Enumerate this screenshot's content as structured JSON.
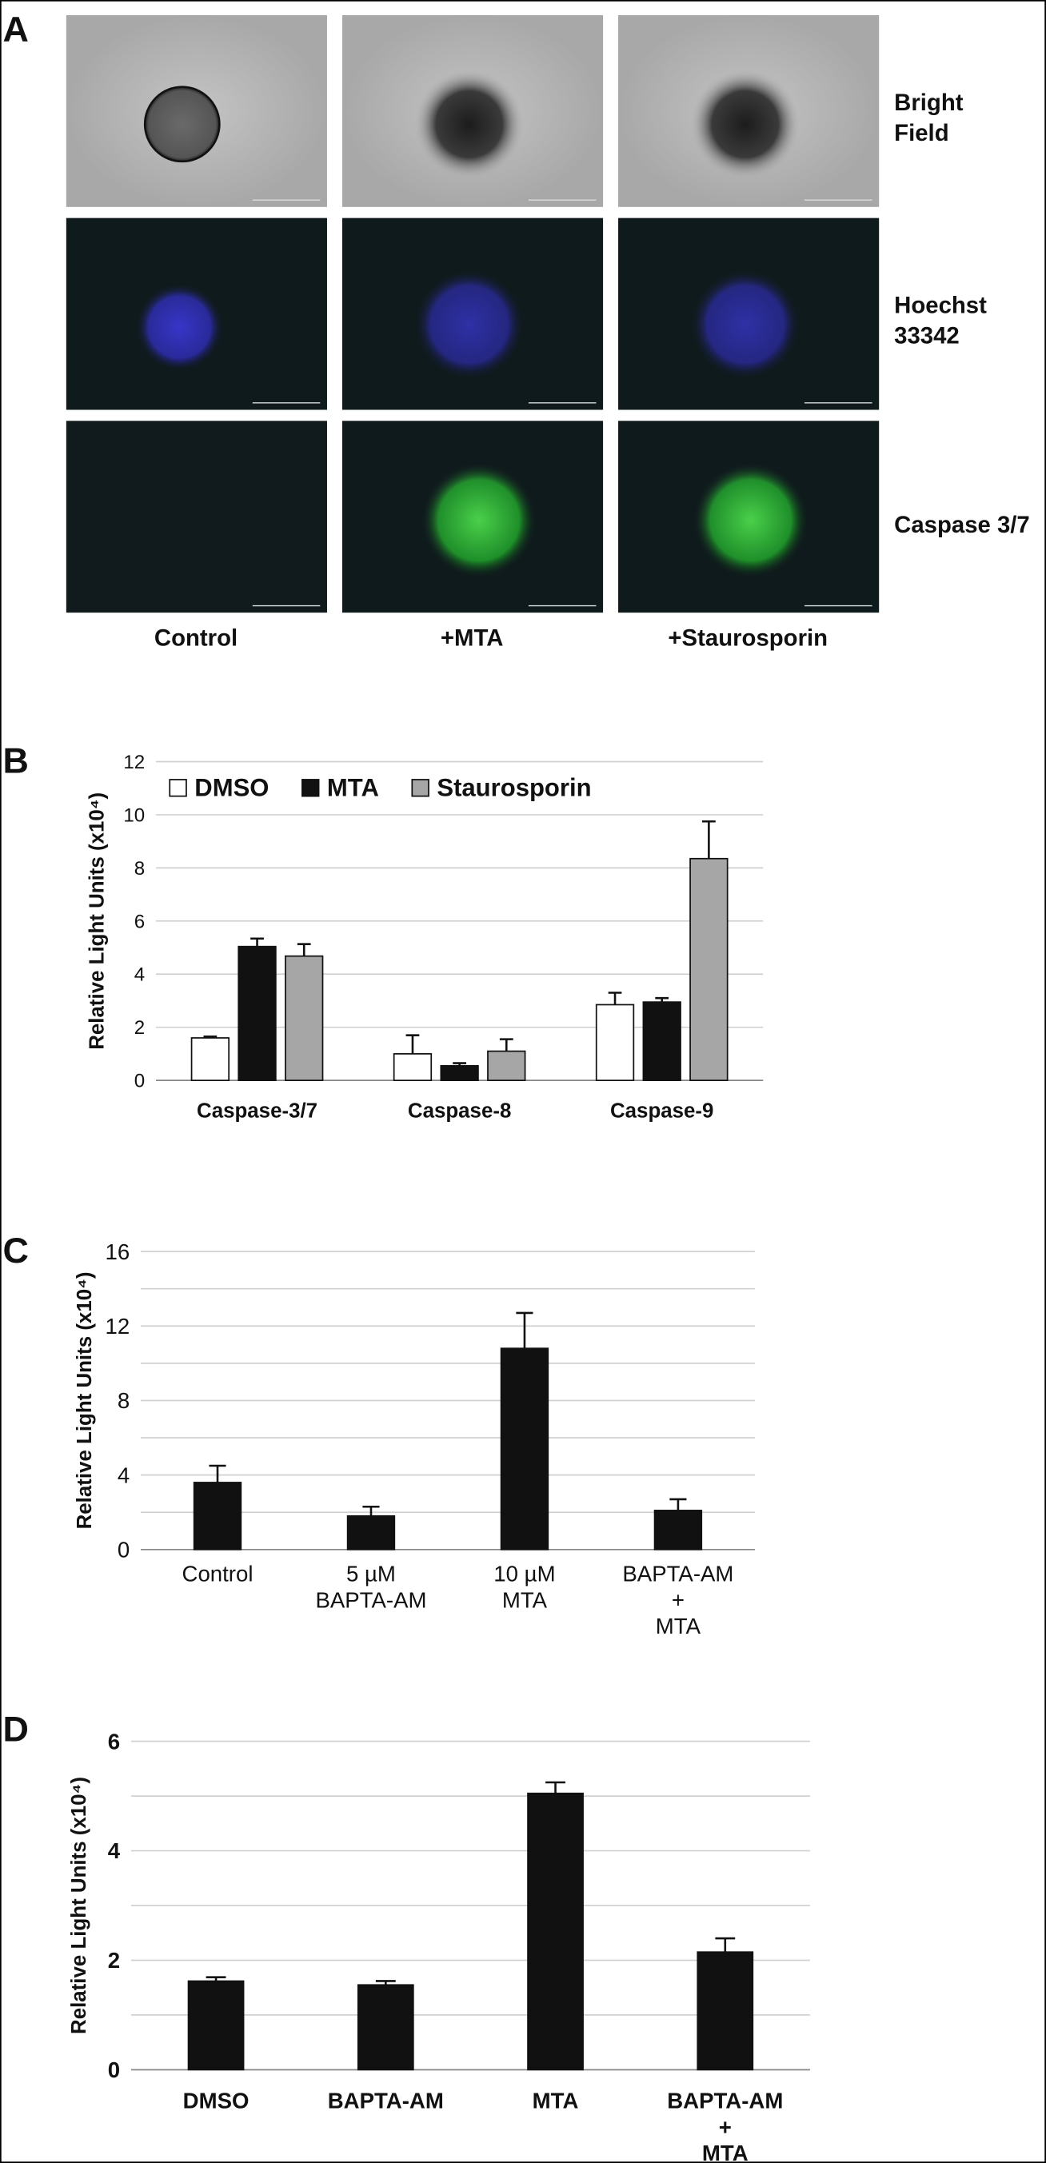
{
  "panel_a": {
    "label": "A",
    "columns": [
      "Control",
      "+MTA",
      "+Staurosporin"
    ],
    "rows": [
      "Bright\nField",
      "Hoechst\n33342",
      "Caspase 3/7"
    ]
  },
  "chart_data": [
    {
      "type": "bar",
      "label": "B",
      "y_label": "Relative Light Units (x10⁴)",
      "categories": [
        "Caspase-3/7",
        "Caspase-8",
        "Caspase-9"
      ],
      "series": [
        {
          "name": "DMSO",
          "color": "#ffffff",
          "values": [
            1.6,
            1.0,
            2.85
          ],
          "errors": [
            0.05,
            0.7,
            0.45
          ]
        },
        {
          "name": "MTA",
          "color": "#111111",
          "values": [
            5.04,
            0.55,
            2.95
          ],
          "errors": [
            0.3,
            0.1,
            0.15
          ]
        },
        {
          "name": "Staurosporin",
          "color": "#a6a6a6",
          "values": [
            4.68,
            1.1,
            8.35
          ],
          "errors": [
            0.45,
            0.45,
            1.4
          ]
        }
      ],
      "ylim": [
        0,
        12
      ],
      "yticks": [
        0,
        2,
        4,
        6,
        8,
        10,
        12
      ],
      "grid": true,
      "legend": "top"
    },
    {
      "type": "bar",
      "label": "C",
      "y_label": "Relative Light Units (x10⁴)",
      "categories": [
        "Control",
        "5 µM\nBAPTA-AM",
        "10 µM\nMTA",
        "BAPTA-AM\n+\nMTA"
      ],
      "values": [
        3.6,
        1.8,
        10.8,
        2.1
      ],
      "errors": [
        0.9,
        0.5,
        1.9,
        0.6
      ],
      "color": "#111111",
      "ylim": [
        0,
        16
      ],
      "yticks": [
        0,
        4,
        8,
        12,
        16
      ],
      "minor_yticks": [
        2,
        6,
        10,
        14
      ],
      "grid": true
    },
    {
      "type": "bar",
      "label": "D",
      "y_label": "Relative Light Units (x10⁴)",
      "categories": [
        "DMSO",
        "BAPTA-AM",
        "MTA",
        "BAPTA-AM\n+\nMTA"
      ],
      "values": [
        1.62,
        1.55,
        5.05,
        2.15
      ],
      "errors": [
        0.07,
        0.07,
        0.2,
        0.25
      ],
      "color": "#111111",
      "ylim": [
        0,
        6
      ],
      "yticks": [
        0,
        2,
        4,
        6
      ],
      "minor_yticks": [
        1,
        3,
        5
      ],
      "grid": true
    }
  ]
}
